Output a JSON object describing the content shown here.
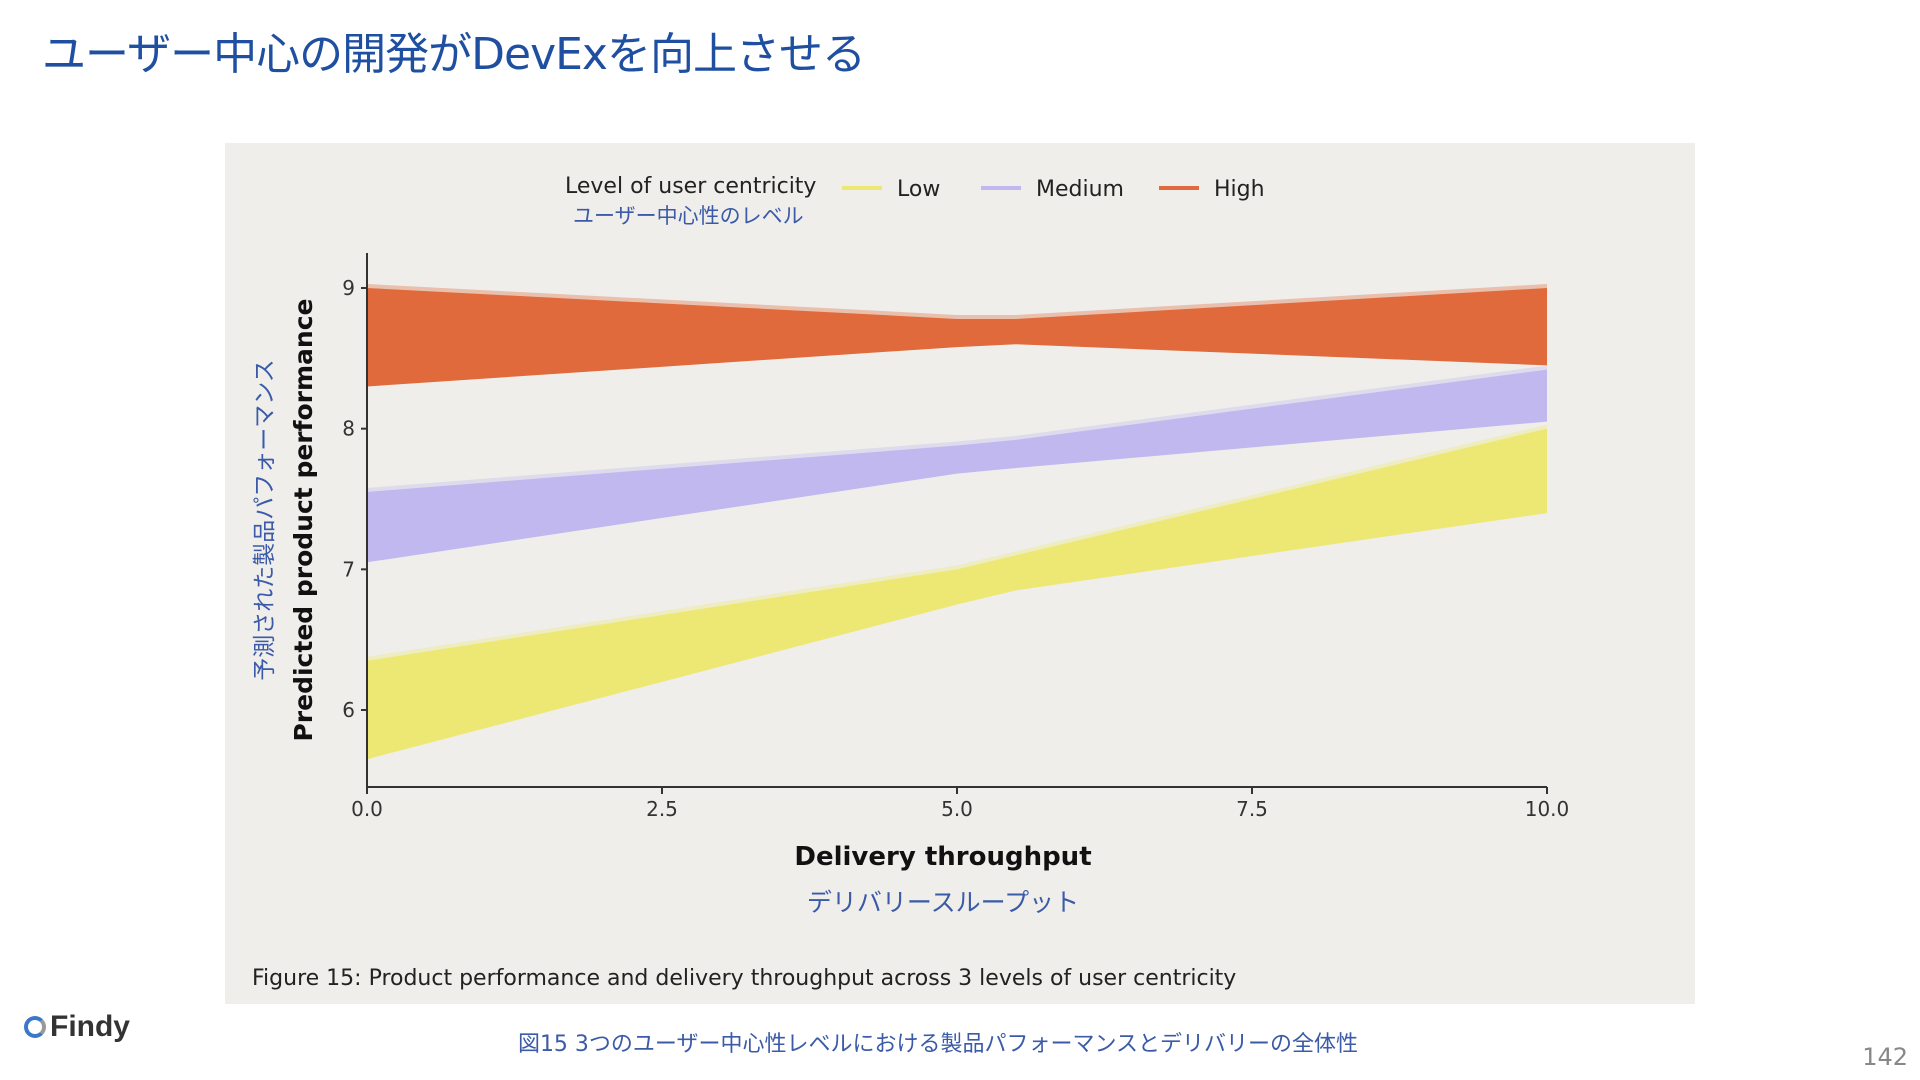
{
  "title": "ユーザー中心の開発がDevExを向上させる",
  "chart_data": {
    "type": "area",
    "title": "",
    "legend_title": "Level of user centricity",
    "legend_title_ja": "ユーザー中心性のレベル",
    "legend_position": "top",
    "xlabel": "Delivery throughput",
    "xlabel_ja": "デリバリースループット",
    "ylabel": "Predicted product performance",
    "ylabel_ja": "予測された製品パフォーマンス",
    "xlim": [
      0,
      10
    ],
    "ylim": [
      5.45,
      9.25
    ],
    "xticks": [
      "0.0",
      "2.5",
      "5.0",
      "7.5",
      "10.0"
    ],
    "yticks": [
      "6",
      "7",
      "8",
      "9"
    ],
    "grid": false,
    "x": [
      0,
      5,
      5.5,
      10
    ],
    "series": [
      {
        "name": "Low",
        "color": "#ede874",
        "lower": [
          5.65,
          6.75,
          6.85,
          7.4
        ],
        "upper": [
          6.35,
          7.0,
          7.1,
          8.0
        ]
      },
      {
        "name": "Medium",
        "color": "#c0b8ee",
        "lower": [
          7.05,
          7.68,
          7.72,
          8.05
        ],
        "upper": [
          7.55,
          7.88,
          7.92,
          8.42
        ]
      },
      {
        "name": "High",
        "color": "#e06a3b",
        "lower": [
          8.3,
          8.58,
          8.6,
          8.45
        ],
        "upper": [
          9.0,
          8.78,
          8.78,
          9.0
        ]
      }
    ]
  },
  "figure_caption": "Figure 15: Product performance and delivery throughput across 3 levels of user centricity",
  "caption_ja": "図15 3つのユーザー中心性レベルにおける製品パフォーマンスとデリバリーの全体性",
  "logo": "Findy",
  "page_number": "142"
}
